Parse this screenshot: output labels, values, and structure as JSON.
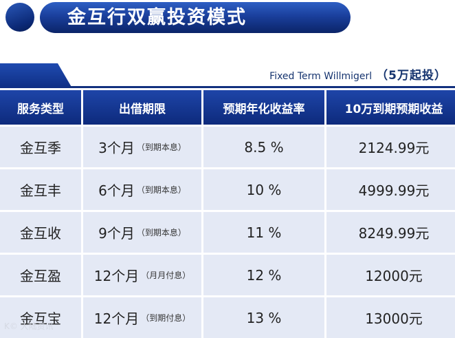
{
  "title": "金互行双赢投资模式",
  "subtitle": {
    "en": "Fixed Term Willmigerl",
    "cn": "（5万起投）"
  },
  "table": {
    "headers": [
      "服务类型",
      "出借期限",
      "预期年化收益率",
      "10万到期预期收益"
    ],
    "rows": [
      {
        "name": "金互季",
        "term": "3个月",
        "term_note": "（到期本息）",
        "rate": "8.5 %",
        "income": "2124.99元"
      },
      {
        "name": "金互丰",
        "term": "6个月",
        "term_note": "（到期本息）",
        "rate": "10 %",
        "income": "4999.99元"
      },
      {
        "name": "金互收",
        "term": "9个月",
        "term_note": "（到期本息）",
        "rate": "11 %",
        "income": "8249.99元"
      },
      {
        "name": "金互盈",
        "term": "12个月",
        "term_note": "（月月付息）",
        "rate": "12 %",
        "income": "12000元"
      },
      {
        "name": "金互宝",
        "term": "12个月",
        "term_note": "（到期付息）",
        "rate": "13 %",
        "income": "13000元"
      }
    ]
  },
  "watermark": "K© 大陆资讯"
}
